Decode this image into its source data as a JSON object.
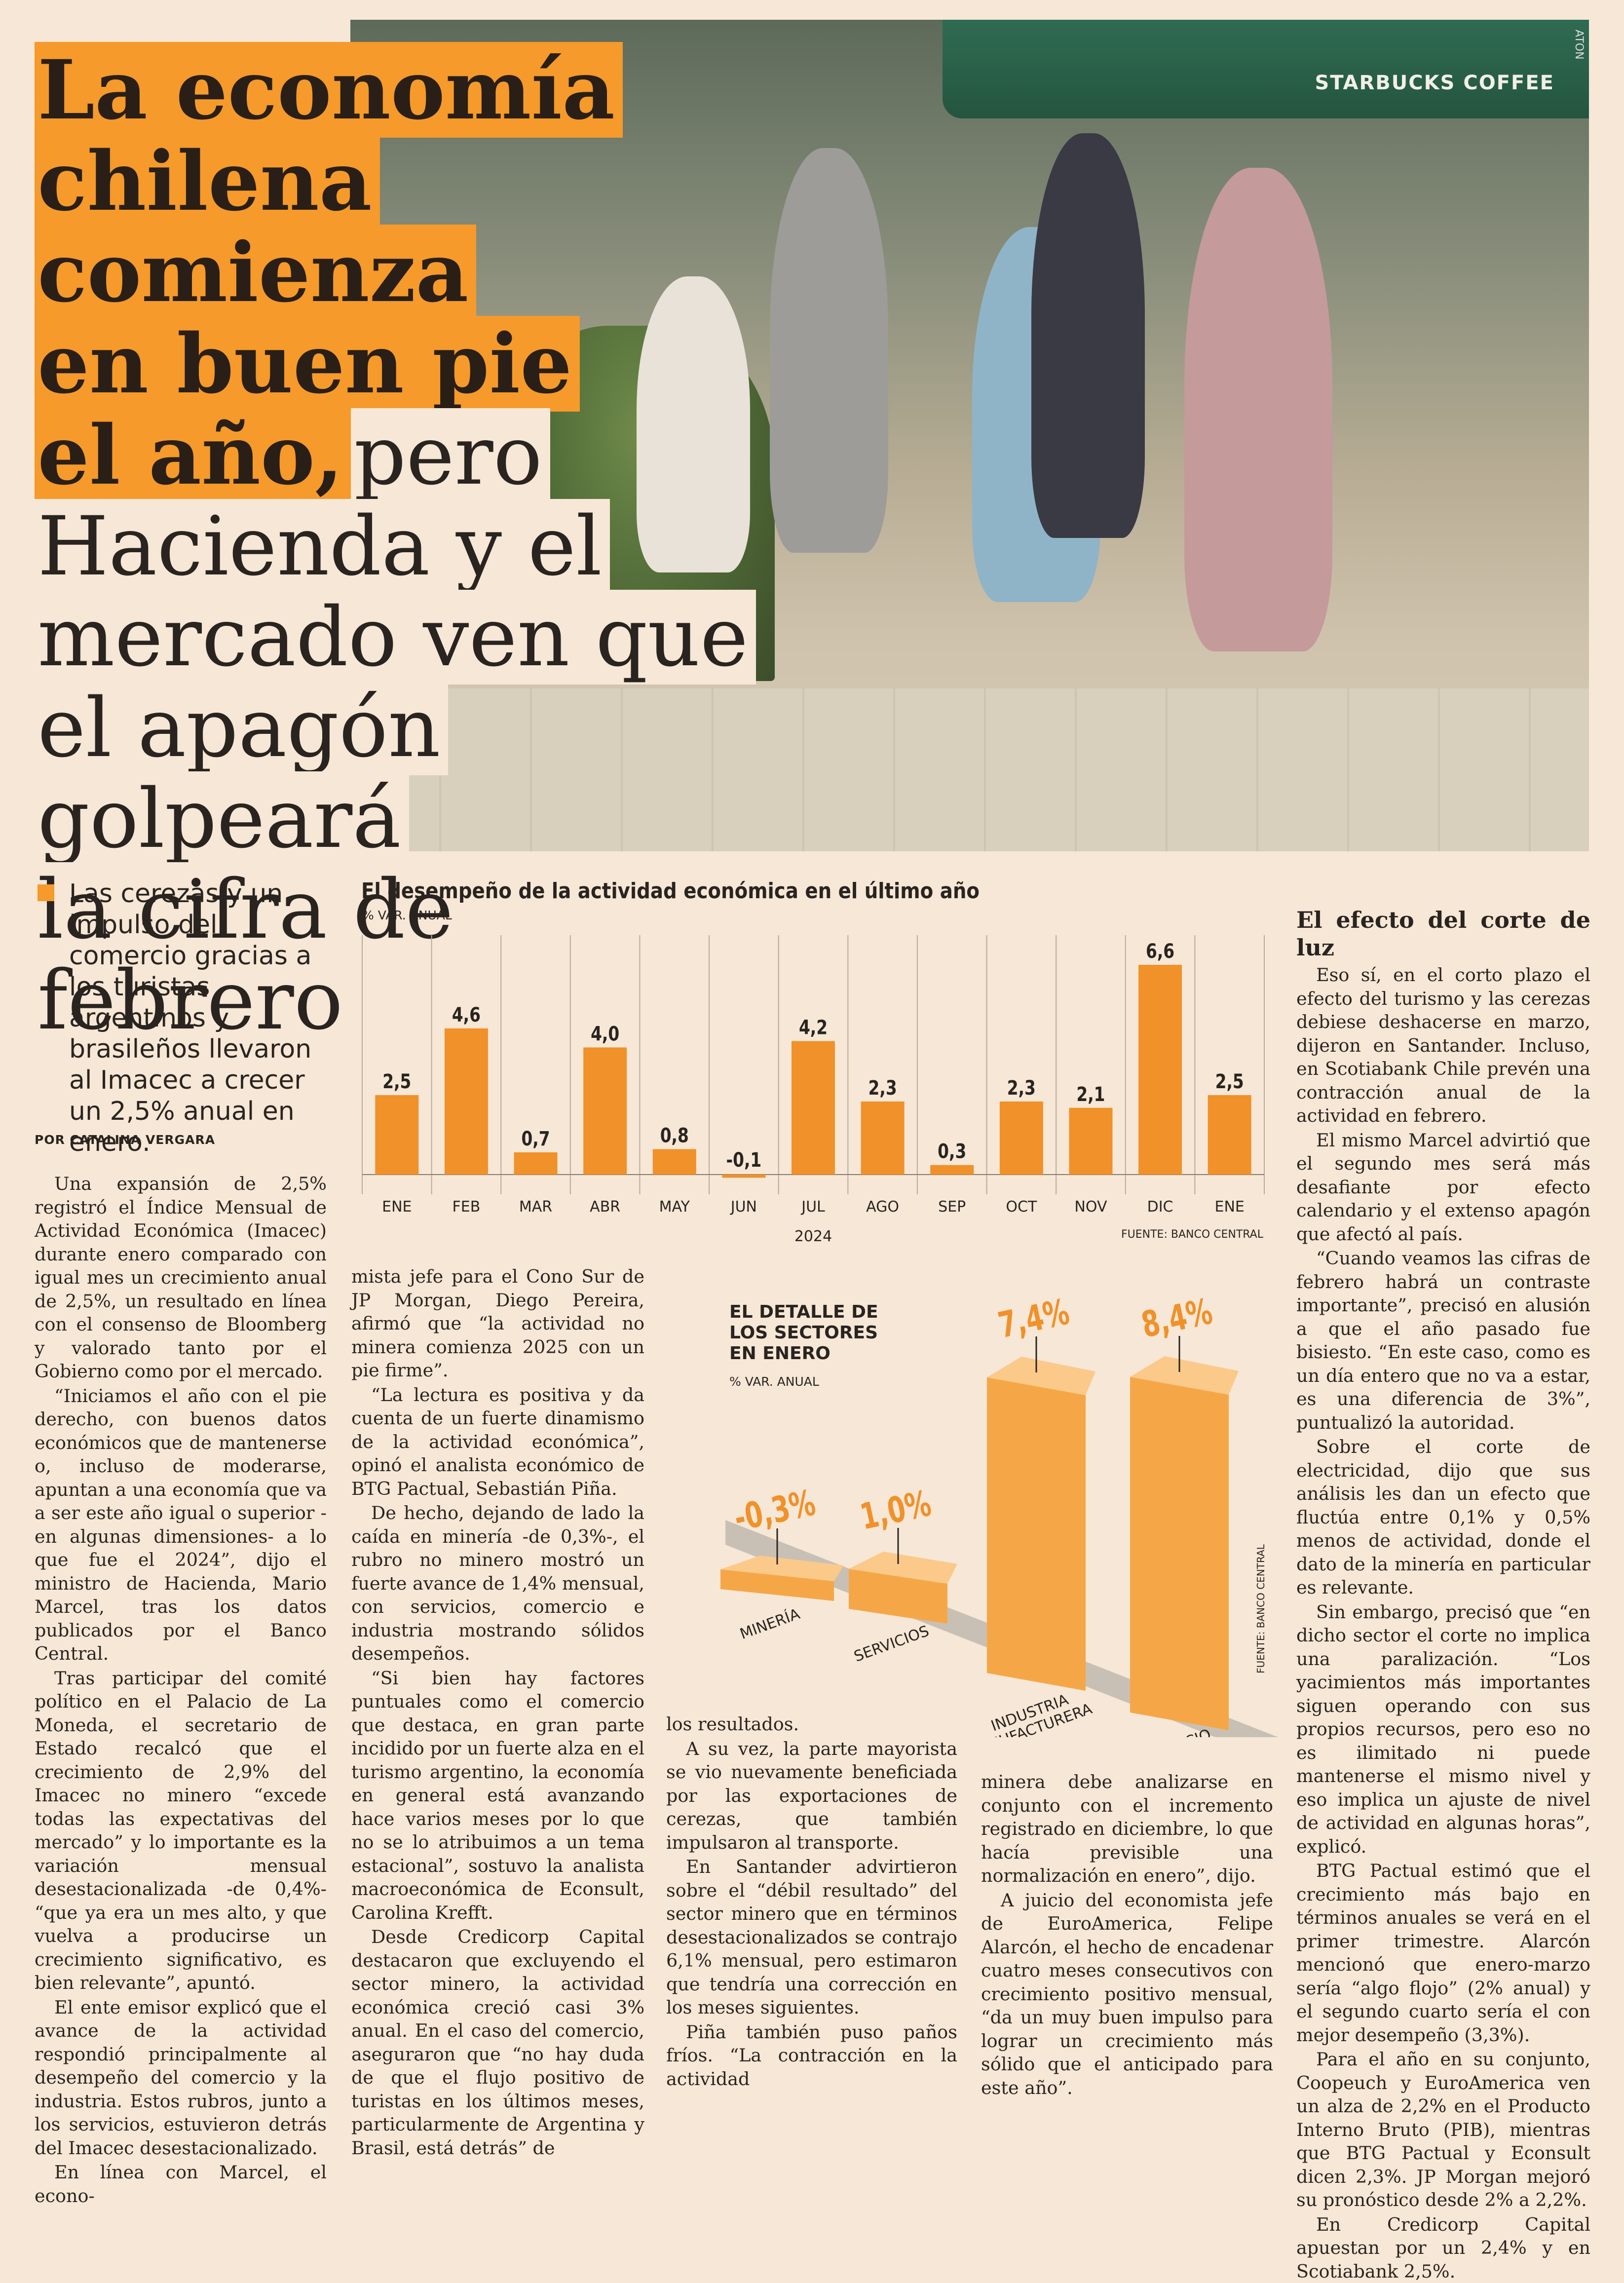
{
  "headline": {
    "bold_lines": [
      "La economía",
      "chilena comienza",
      "en buen pie",
      "el año,"
    ],
    "light_start": "pero",
    "light_lines": [
      "Hacienda y el",
      "mercado ven que",
      "el apagón golpeará",
      "la cifra de febrero"
    ]
  },
  "photo": {
    "umbrella_text": "STARBUCKS COFFEE",
    "credit": "ATON"
  },
  "deck": "Las cerezas y un impulso del comercio gracias a los turistas argentinos y brasileños llevaron al Imacec a crecer un 2,5% anual en enero.",
  "byline": "POR CATALINA VERGARA",
  "body": {
    "col1": [
      "Una expansión de 2,5% registró el Índice Mensual de Actividad Económica (Imacec) durante enero comparado con igual mes un crecimiento anual de 2,5%, un resultado en línea con el consenso de Bloomberg y valorado tanto por el Gobierno como por el mercado.",
      "“Iniciamos el año con el pie derecho, con buenos datos económicos que de mantenerse o, incluso de moderarse, apuntan a una economía que va a ser este año igual o superior -en algunas dimensiones- a lo que fue el 2024”, dijo el ministro de Hacienda, Mario Marcel, tras los datos publicados por el Banco Central.",
      "Tras participar del comité político en el Palacio de La Moneda, el secretario de Estado recalcó que el crecimiento de 2,9% del Imacec no minero “excede todas las expectativas del mercado” y lo importante es la variación mensual desestacionalizada -de 0,4%- “que ya era un mes alto, y que vuelva a producirse un crecimiento significativo, es bien relevante”, apuntó.",
      "El ente emisor explicó que el avance de la actividad respondió principalmente al desempeño del comercio y la industria. Estos rubros, junto a los servicios, estuvieron detrás del Imacec desestacionalizado.",
      "En línea con Marcel, el econo-"
    ],
    "col2": [
      "mista jefe para el Cono Sur de JP Morgan, Diego Pereira, afirmó que “la actividad no minera comienza 2025 con un pie firme”.",
      "“La lectura es positiva y da cuenta de un fuerte dinamismo de la actividad económica”, opinó el analista económico de BTG Pactual, Sebastián Piña.",
      "De hecho, dejando de lado la caída en minería -de 0,3%-, el rubro no minero mostró un fuerte avance de 1,4% mensual, con servicios, comercio e industria mostrando sólidos desempeños.",
      "“Si bien hay factores puntuales como el comercio que destaca, en gran parte incidido por un fuerte alza en el turismo argentino, la economía en general está avanzando hace varios meses por lo que no se lo atribuimos a un tema estacional”, sostuvo la analista macroeconómica de Econsult, Carolina Krefft.",
      "Desde Credicorp Capital destacaron que excluyendo el sector minero, la actividad económica creció casi 3% anual. En el caso del comercio, aseguraron que “no hay duda de que el flujo positivo de turistas en los últimos meses, particularmente de Argentina y Brasil, está detrás” de"
    ],
    "col3": [
      "los resultados.",
      "A su vez, la parte mayorista se vio nuevamente beneficiada por las exportaciones de cerezas, que también impulsaron al transporte.",
      "En Santander advirtieron sobre el “débil resultado” del sector minero que en términos desestacionalizados se contrajo 6,1% mensual, pero estimaron que tendría una corrección en los meses siguientes.",
      "Piña también puso paños fríos. “La contracción en la actividad"
    ],
    "col4": [
      "minera debe analizarse en conjunto con el incremento registrado en diciembre, lo que hacía previsible una normalización en enero”, dijo.",
      "A juicio del economista jefe de EuroAmerica, Felipe Alarcón, el hecho de encadenar cuatro meses consecutivos con crecimiento positivo mensual, “da un muy buen impulso para lograr un crecimiento más sólido que el anticipado para este año”."
    ],
    "col5_heading": "El efecto del corte de luz",
    "col5": [
      "Eso sí, en el corto plazo el efecto del turismo y las cerezas debiese deshacerse en marzo, dijeron en Santander. Incluso, en Scotiabank Chile prevén una contracción anual de la actividad en febrero.",
      "El mismo Marcel advirtió que el segundo mes será más desafiante por efecto calendario y el extenso apagón que afectó al país.",
      "“Cuando veamos las cifras de febrero habrá un contraste importante”, precisó en alusión a que el año pasado fue bisiesto. “En este caso, como es un día entero que no va a estar, es una diferencia de 3%”, puntualizó la autoridad.",
      "Sobre el corte de electricidad, dijo que sus análisis les dan un efecto que fluctúa entre 0,1% y 0,5% menos de actividad, donde el dato de la minería en particular es relevante.",
      "Sin embargo, precisó que “en dicho sector el corte no implica una paralización. “Los yacimientos más importantes siguen operando con sus propios recursos, pero eso no es ilimitado ni puede mantenerse el mismo nivel y eso implica un ajuste de nivel de actividad en algunas horas”, explicó.",
      "BTG Pactual estimó que el crecimiento más bajo en términos anuales se verá en el primer trimestre. Alarcón mencionó que enero-marzo sería “algo flojo” (2% anual) y el segundo cuarto sería el con mejor desempeño (3,3%).",
      "Para el año en su conjunto, Coopeuch y EuroAmerica ven un alza de 2,2% en el Producto Interno Bruto (PIB), mientras que BTG Pactual y Econsult dicen 2,3%. JP Morgan mejoró su pronóstico desde 2% a 2,2%.",
      "En Credicorp Capital apuestan por un 2,4% y en Scotiabank 2,5%."
    ]
  },
  "chart_data": [
    {
      "type": "bar",
      "title": "El desempeño de la actividad económica en el último año",
      "ylabel": "% VAR. ANUAL",
      "categories": [
        "ENE",
        "FEB",
        "MAR",
        "ABR",
        "MAY",
        "JUN",
        "JUL",
        "AGO",
        "SEP",
        "OCT",
        "NOV",
        "DIC",
        "ENE"
      ],
      "values": [
        2.5,
        4.6,
        0.7,
        4.0,
        0.8,
        -0.1,
        4.2,
        2.3,
        0.3,
        2.3,
        2.1,
        6.6,
        2.5
      ],
      "labels": [
        "2,5",
        "4,6",
        "0,7",
        "4,0",
        "0,8",
        "-0,1",
        "4,2",
        "2,3",
        "0,3",
        "2,3",
        "2,1",
        "6,6",
        "2,5"
      ],
      "year_label": "2024",
      "source": "FUENTE: BANCO CENTRAL",
      "ylim": [
        -0.5,
        7.5
      ],
      "color": "#f0912a",
      "grid": "vertical"
    },
    {
      "type": "bar",
      "title": "EL DETALLE DE LOS SECTORES EN ENERO",
      "ylabel": "% VAR. ANUAL",
      "categories": [
        "MINERÍA",
        "SERVICIOS",
        "INDUSTRIA MANUFACTURERA",
        "COMERCIO"
      ],
      "values": [
        -0.3,
        1.0,
        7.4,
        8.4
      ],
      "labels": [
        "-0,3%",
        "1,0%",
        "7,4%",
        "8,4%"
      ],
      "source": "FUENTE: BANCO CENTRAL",
      "color": "#f5a747"
    }
  ]
}
